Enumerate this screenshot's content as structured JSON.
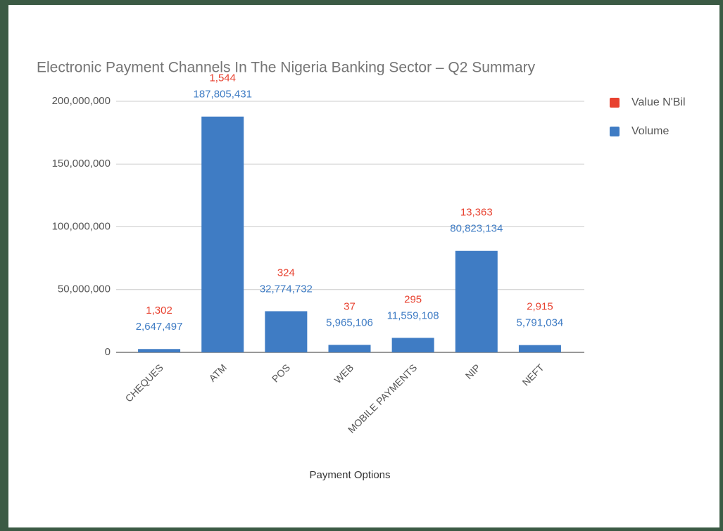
{
  "chart_data": {
    "type": "bar",
    "title": "Electronic Payment Channels In The Nigeria Banking Sector – Q2 Summary",
    "x_label": "Payment Options",
    "categories": [
      "CHEQUES",
      "ATM",
      "POS",
      "WEB",
      "MOBILE PAYMENTS",
      "NIP",
      "NEFT"
    ],
    "series": [
      {
        "name": "Value N'Bil",
        "color": "#e8412f",
        "values": [
          1302,
          1544,
          324,
          37,
          295,
          13363,
          2915
        ],
        "value_labels": [
          "1,302",
          "1,544",
          "324",
          "37",
          "295",
          "13,363",
          "2,915"
        ]
      },
      {
        "name": "Volume",
        "color": "#3f7cc4",
        "values": [
          2647497,
          187805431,
          32774732,
          5965106,
          11559108,
          80823134,
          5791034
        ],
        "value_labels": [
          "2,647,497",
          "187,805,431",
          "32,774,732",
          "5,965,106",
          "11,559,108",
          "80,823,134",
          "5,791,034"
        ]
      }
    ],
    "ylim": [
      0,
      200000000
    ],
    "yticks": [
      0,
      {
        "value": 50000000,
        "label": "50,000,000"
      },
      {
        "value": 100000000,
        "label": "100,000,000"
      },
      {
        "value": 150000000,
        "label": "150,000,000"
      },
      {
        "value": 200000000,
        "label": "200,000,000"
      }
    ],
    "grid": true,
    "legend": "right"
  }
}
